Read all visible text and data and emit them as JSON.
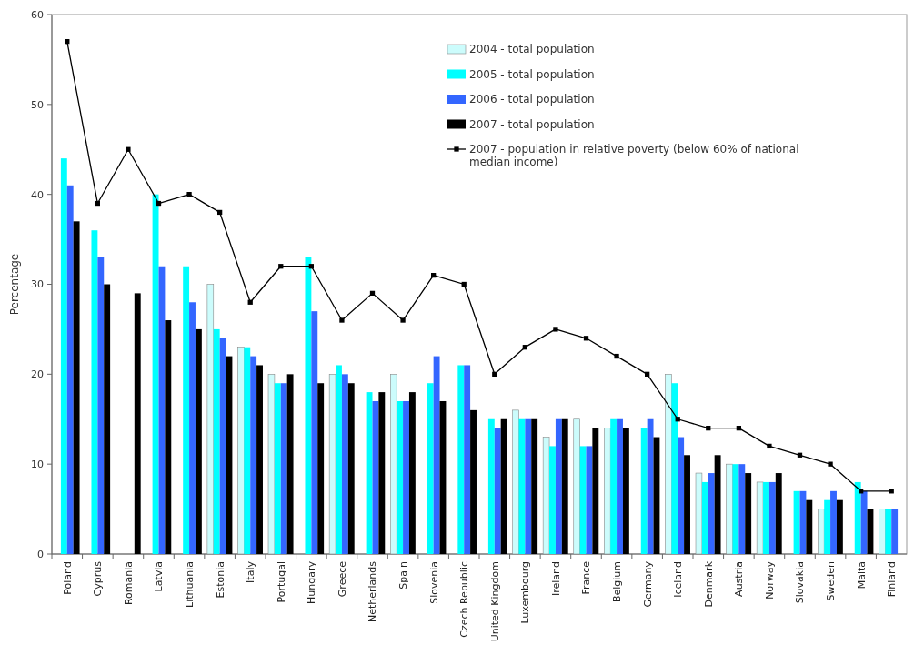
{
  "chart_data": {
    "type": "bar",
    "ylabel": "Percentage",
    "categories": [
      "Poland",
      "Cyprus",
      "Romania",
      "Latvia",
      "Lithuania",
      "Estonia",
      "Italy",
      "Portugal",
      "Hungary",
      "Greece",
      "Netherlands",
      "Spain",
      "Slovenia",
      "Czech Republic",
      "United Kingdom",
      "Luxembourg",
      "Ireland",
      "France",
      "Belgium",
      "Germany",
      "Iceland",
      "Denmark",
      "Austria",
      "Norway",
      "Slovakia",
      "Sweden",
      "Malta",
      "Finland"
    ],
    "series": [
      {
        "name": "2004 - total population",
        "color": "#ccfcfc",
        "values": [
          null,
          null,
          null,
          null,
          null,
          30,
          23,
          20,
          null,
          20,
          null,
          20,
          null,
          null,
          null,
          16,
          13,
          15,
          14,
          null,
          20,
          9,
          10,
          8,
          null,
          5,
          null,
          5
        ]
      },
      {
        "name": "2005 - total population",
        "color": "#00ffff",
        "values": [
          44,
          36,
          null,
          40,
          32,
          25,
          23,
          19,
          33,
          21,
          18,
          17,
          19,
          21,
          15,
          15,
          12,
          12,
          15,
          14,
          19,
          8,
          10,
          8,
          7,
          6,
          8,
          5
        ]
      },
      {
        "name": "2006 - total population",
        "color": "#3366ff",
        "values": [
          41,
          33,
          null,
          32,
          28,
          24,
          22,
          19,
          27,
          20,
          17,
          17,
          22,
          21,
          14,
          15,
          15,
          12,
          15,
          15,
          13,
          9,
          10,
          8,
          7,
          7,
          7,
          5
        ]
      },
      {
        "name": "2007 - total population",
        "color": "#000000",
        "values": [
          37,
          30,
          29,
          26,
          25,
          22,
          21,
          20,
          19,
          19,
          18,
          18,
          17,
          16,
          15,
          15,
          15,
          14,
          14,
          13,
          11,
          11,
          9,
          9,
          6,
          6,
          5,
          null
        ]
      },
      {
        "name": "2007 - population in relative poverty (below 60% of national median income)",
        "type": "line",
        "color": "#000000",
        "marker": "square",
        "values": [
          57,
          39,
          45,
          39,
          40,
          38,
          28,
          32,
          32,
          26,
          29,
          26,
          31,
          30,
          20,
          23,
          25,
          24,
          22,
          20,
          15,
          14,
          14,
          12,
          11,
          10,
          7,
          7
        ]
      }
    ],
    "ylim": [
      0,
      60
    ],
    "yticks": [
      0,
      10,
      20,
      30,
      40,
      50,
      60
    ],
    "grid": false,
    "legend": "top right"
  }
}
